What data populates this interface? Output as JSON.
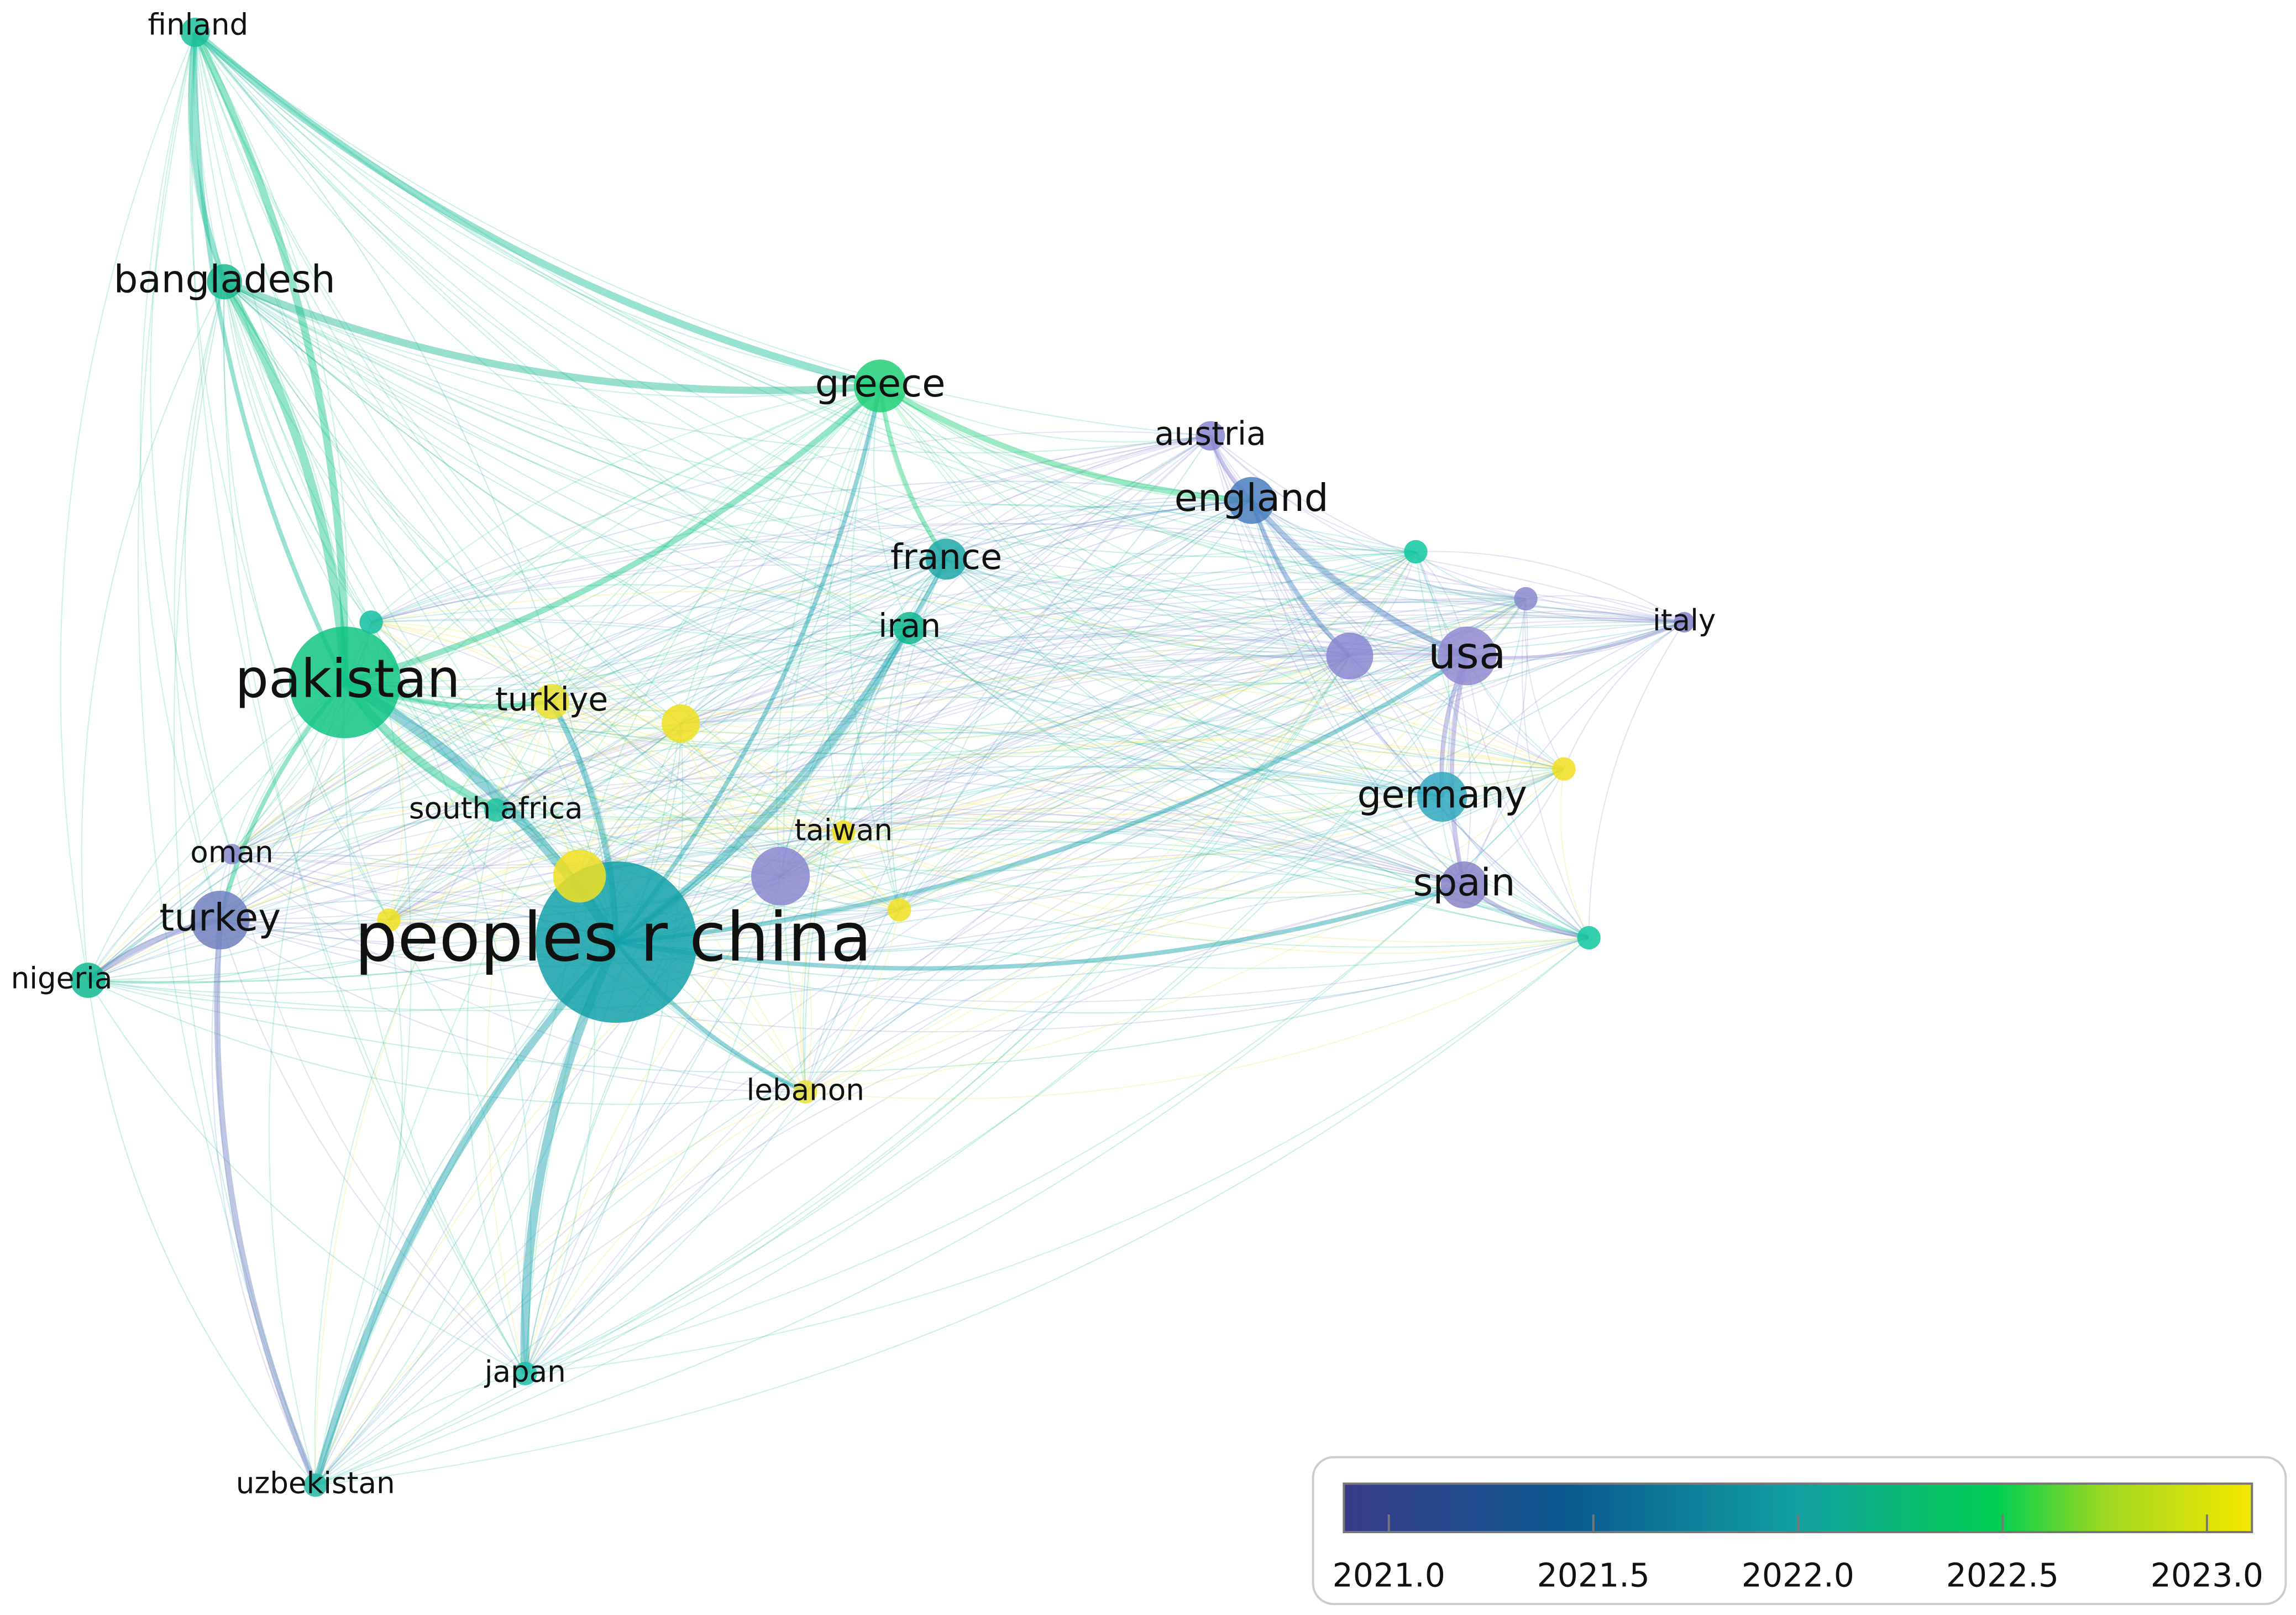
{
  "nodes": [
    {
      "label": "peoples r china",
      "color": "#12a0a8"
    },
    {
      "label": "pakistan",
      "color": "#10c484"
    },
    {
      "label": "finland",
      "color": "#1abf9a"
    },
    {
      "label": "bangladesh",
      "color": "#1ab890"
    },
    {
      "label": "greece",
      "color": "#22d07a"
    },
    {
      "label": "austria",
      "color": "#8a86d0"
    },
    {
      "label": "england",
      "color": "#4a80c0"
    },
    {
      "label": "france",
      "color": "#20a8a8"
    },
    {
      "label": "iran",
      "color": "#10b890"
    },
    {
      "label": "usa",
      "color": "#9088d0"
    },
    {
      "label": "italy",
      "color": "#8080c8"
    },
    {
      "label": "turkiye",
      "color": "#e8e030"
    },
    {
      "label": "germany",
      "color": "#30a8c0"
    },
    {
      "label": "spain",
      "color": "#8a82c8"
    },
    {
      "label": "south africa",
      "color": "#20c0a0"
    },
    {
      "label": "taiwan",
      "color": "#f0e020"
    },
    {
      "label": "oman",
      "color": "#8888cc"
    },
    {
      "label": "turkey",
      "color": "#7080c0"
    },
    {
      "label": "nigeria",
      "color": "#10b890"
    },
    {
      "label": "lebanon",
      "color": "#e8e040"
    },
    {
      "label": "japan",
      "color": "#20c0a8"
    },
    {
      "label": "uzbekistan",
      "color": "#20b8a0"
    }
  ],
  "legend": {
    "range": [
      2020.89,
      2023.11
    ],
    "ticks": [
      {
        "value": 2021,
        "label": "2021.0"
      },
      {
        "value": 2021.5,
        "label": "2021.5"
      },
      {
        "value": 2022,
        "label": "2022.0"
      },
      {
        "value": 2022.5,
        "label": "2022.5"
      },
      {
        "value": 2023,
        "label": "2023.0"
      }
    ]
  }
}
